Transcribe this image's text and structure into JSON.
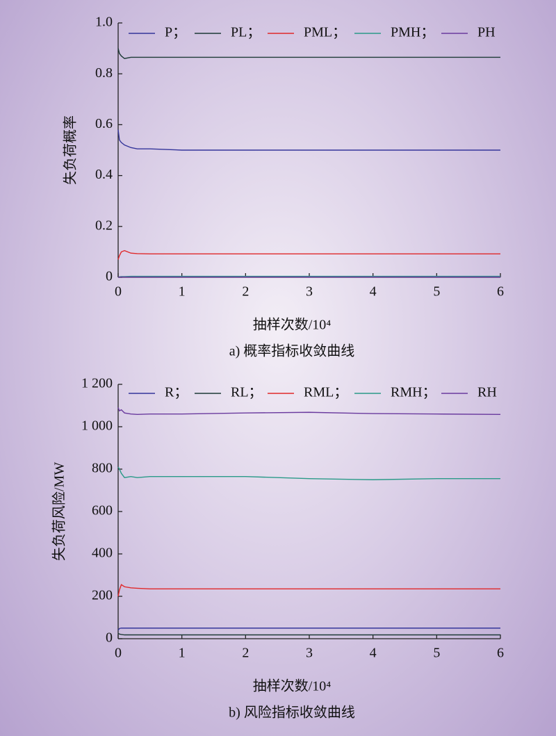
{
  "chart_data": [
    {
      "type": "line",
      "caption": "a) 概率指标收敛曲线",
      "x_label": "抽样次数/10⁴",
      "y_label": "失负荷概率",
      "x": [
        0,
        0.02,
        0.05,
        0.1,
        0.2,
        0.3,
        0.5,
        1,
        2,
        3,
        4,
        5,
        6
      ],
      "xlim": [
        0,
        6
      ],
      "xticks": [
        0,
        1,
        2,
        3,
        4,
        5,
        6
      ],
      "ylim": [
        0,
        1
      ],
      "yticks": [
        0,
        0.2,
        0.4,
        0.6,
        0.8,
        {
          "value": 1,
          "label": "1.0"
        }
      ],
      "series": [
        {
          "name": "P；",
          "color": "#34359a",
          "values": [
            0.58,
            0.54,
            0.53,
            0.52,
            0.51,
            0.505,
            0.505,
            0.5,
            0.5,
            0.5,
            0.5,
            0.5,
            0.5
          ]
        },
        {
          "name": "PL；",
          "color": "#1d3a36",
          "values": [
            0.9,
            0.88,
            0.87,
            0.86,
            0.865,
            0.865,
            0.865,
            0.865,
            0.865,
            0.865,
            0.865,
            0.865,
            0.865
          ]
        },
        {
          "name": "PML；",
          "color": "#e0282a",
          "values": [
            0.07,
            0.085,
            0.1,
            0.105,
            0.095,
            0.093,
            0.092,
            0.092,
            0.092,
            0.092,
            0.092,
            0.092,
            0.092
          ]
        },
        {
          "name": "PMH；",
          "color": "#2a9a88",
          "values": [
            0,
            0.002,
            0.003,
            0.003,
            0.004,
            0.004,
            0.004,
            0.004,
            0.004,
            0.004,
            0.004,
            0.004,
            0.004
          ]
        },
        {
          "name": "PH",
          "color": "#6a3a9e",
          "values": [
            0,
            0.001,
            0.001,
            0.001,
            0.001,
            0.001,
            0.001,
            0.001,
            0.001,
            0.001,
            0.001,
            0.001,
            0.001
          ]
        }
      ]
    },
    {
      "type": "line",
      "caption": "b) 风险指标收敛曲线",
      "x_label": "抽样次数/10⁴",
      "y_label": "失负荷风险/MW",
      "x": [
        0,
        0.02,
        0.05,
        0.1,
        0.2,
        0.3,
        0.5,
        1,
        2,
        3,
        4,
        5,
        6
      ],
      "xlim": [
        0,
        6
      ],
      "xticks": [
        0,
        1,
        2,
        3,
        4,
        5,
        6
      ],
      "ylim": [
        0,
        1200
      ],
      "yticks": [
        0,
        200,
        400,
        600,
        {
          "value": 800,
          "label": "800"
        },
        {
          "value": 1000,
          "label": "1 000"
        },
        {
          "value": 1200,
          "label": "1 200"
        }
      ],
      "series": [
        {
          "name": "R；",
          "color": "#34359a",
          "values": [
            40,
            48,
            50,
            50,
            50,
            50,
            50,
            50,
            50,
            50,
            50,
            50,
            50
          ]
        },
        {
          "name": "RL；",
          "color": "#1d3a36",
          "values": [
            25,
            22,
            20,
            18,
            18,
            18,
            18,
            18,
            18,
            18,
            18,
            18,
            18
          ]
        },
        {
          "name": "RML；",
          "color": "#e0282a",
          "values": [
            200,
            230,
            255,
            245,
            240,
            238,
            235,
            235,
            235,
            235,
            235,
            235,
            235
          ]
        },
        {
          "name": "RMH；",
          "color": "#2a9a88",
          "values": [
            810,
            800,
            780,
            760,
            765,
            760,
            765,
            765,
            765,
            755,
            750,
            755,
            755
          ]
        },
        {
          "name": "RH",
          "color": "#6a3a9e",
          "values": [
            1090,
            1075,
            1080,
            1065,
            1060,
            1058,
            1060,
            1060,
            1065,
            1068,
            1062,
            1060,
            1058
          ]
        }
      ]
    }
  ]
}
